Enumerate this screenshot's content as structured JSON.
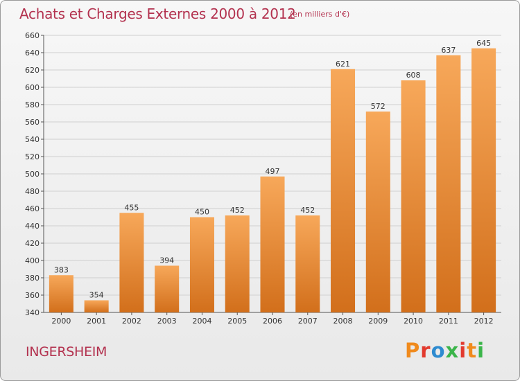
{
  "header": {
    "title": "Achats et Charges Externes 2000 à 2012",
    "subtitle": "(en milliers d'€)"
  },
  "commune": "INGERSHEIM",
  "logo": {
    "text": "Proxiti",
    "letters": [
      "P",
      "r",
      "o",
      "x",
      "i",
      "t",
      "i"
    ],
    "colors": [
      "#f08a1c",
      "#e23a2e",
      "#2e8bd0",
      "#3bb54a",
      "#e23a2e",
      "#f08a1c",
      "#3bb54a"
    ]
  },
  "chart_data": {
    "type": "bar",
    "categories": [
      "2000",
      "2001",
      "2002",
      "2003",
      "2004",
      "2005",
      "2006",
      "2007",
      "2008",
      "2009",
      "2010",
      "2011",
      "2012"
    ],
    "values": [
      383,
      354,
      455,
      394,
      450,
      452,
      497,
      452,
      621,
      572,
      608,
      637,
      645
    ],
    "ylim": [
      340,
      660
    ],
    "yticks": [
      340,
      360,
      380,
      400,
      420,
      440,
      460,
      480,
      500,
      520,
      540,
      560,
      580,
      600,
      620,
      640,
      660
    ],
    "grid": true,
    "colors": {
      "bar_light": "#f7a85a",
      "bar_dark": "#d26f1b",
      "grid": "#cfcfcf"
    }
  }
}
